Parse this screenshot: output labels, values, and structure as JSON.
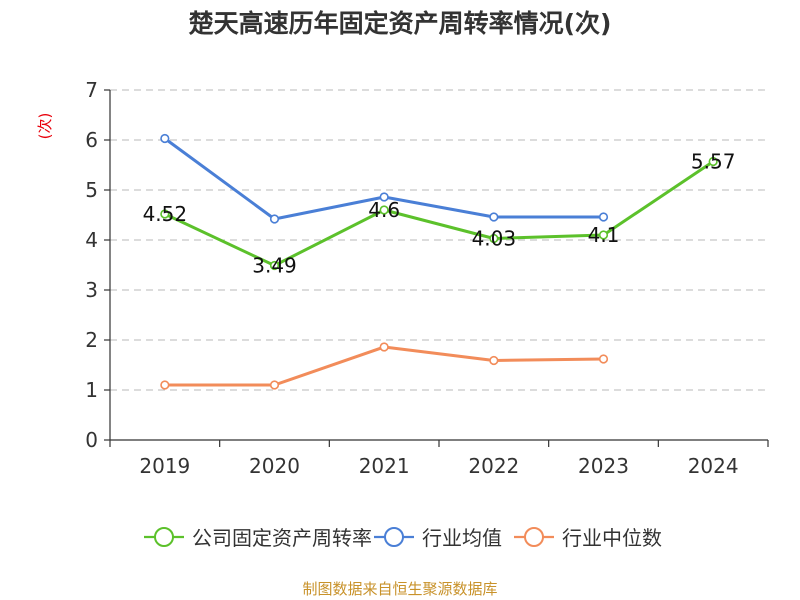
{
  "chart_data": {
    "type": "line",
    "title": "楚天高速历年固定资产周转率情况(次)",
    "ylabel": "(次)",
    "xlabel": "",
    "categories": [
      "2019",
      "2020",
      "2021",
      "2022",
      "2023",
      "2024"
    ],
    "ylim": [
      0,
      7
    ],
    "yticks": [
      0,
      1,
      2,
      3,
      4,
      5,
      6,
      7
    ],
    "grid": true,
    "legend_position": "bottom",
    "series": [
      {
        "name": "公司固定资产周转率",
        "color": "#5cc12b",
        "values": [
          4.52,
          3.49,
          4.6,
          4.03,
          4.1,
          5.57
        ],
        "labels": [
          "4.52",
          "3.49",
          "4.6",
          "4.03",
          "4.1",
          "5.57"
        ]
      },
      {
        "name": "行业均值",
        "color": "#4a7fd6",
        "values": [
          6.03,
          4.42,
          4.86,
          4.46,
          4.46,
          null
        ]
      },
      {
        "name": "行业中位数",
        "color": "#f28c5a",
        "values": [
          1.1,
          1.1,
          1.86,
          1.59,
          1.62,
          null
        ]
      }
    ]
  },
  "source": "制图数据来自恒生聚源数据库"
}
